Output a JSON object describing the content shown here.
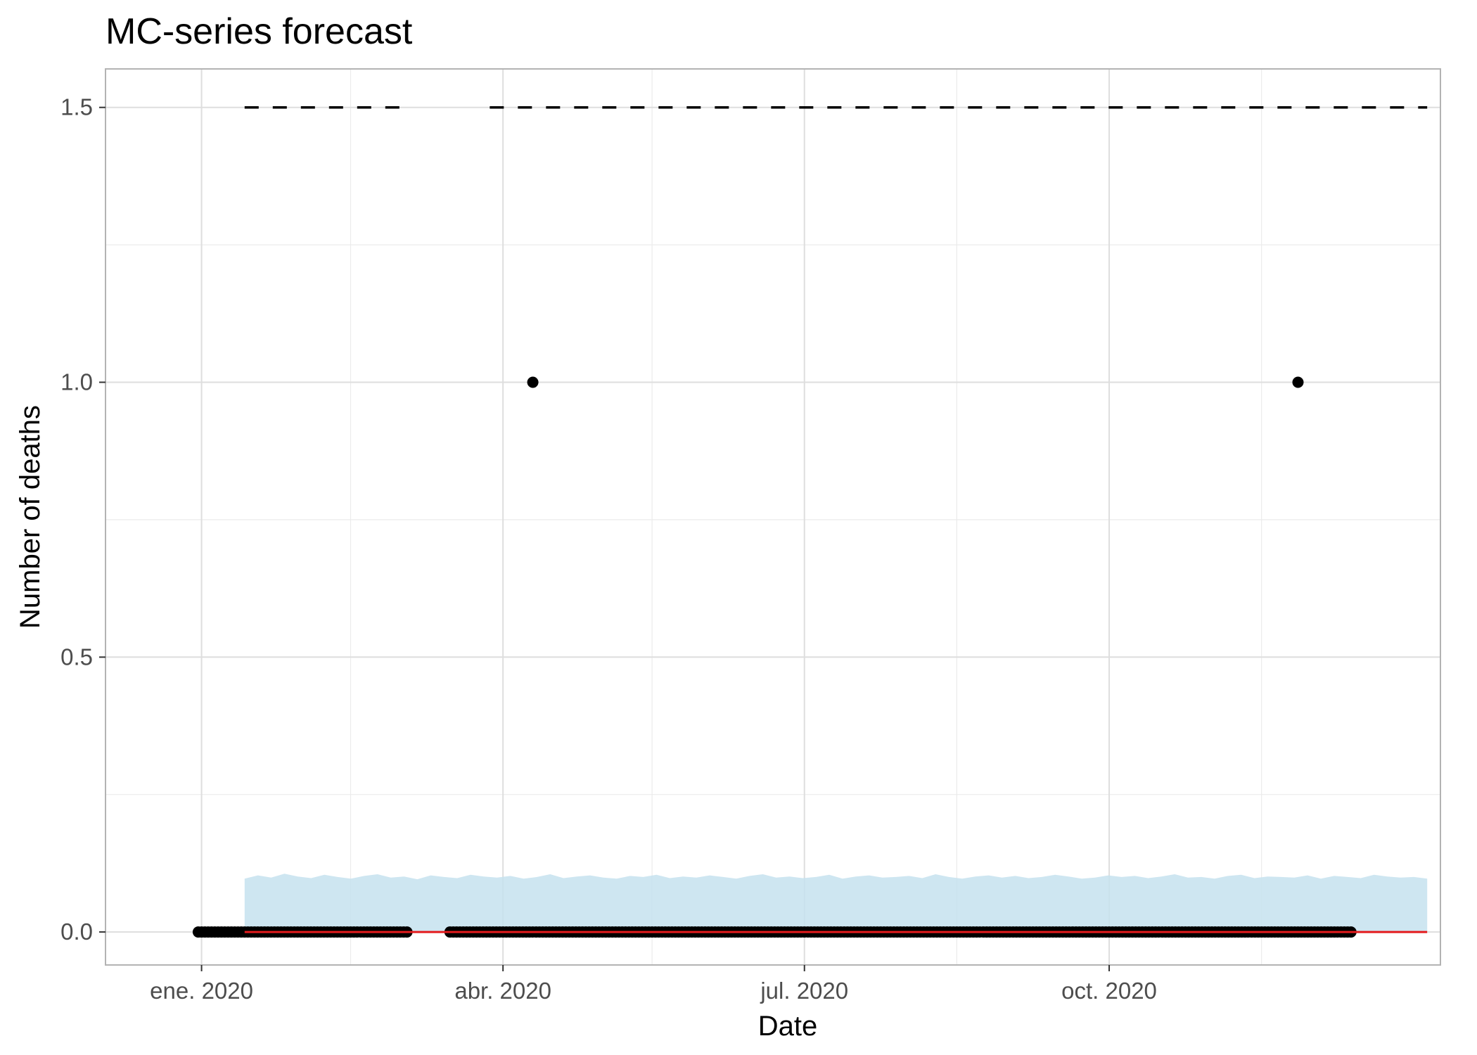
{
  "chart_data": {
    "type": "line",
    "title": "MC-series forecast",
    "xlabel": "Date",
    "ylabel": "Number of deaths",
    "xlim": [
      "2019-12-03",
      "2021-01-09"
    ],
    "ylim": [
      -0.06,
      1.57
    ],
    "x_ticks": [
      {
        "date": "2020-01-01",
        "label": "ene. 2020"
      },
      {
        "date": "2020-04-01",
        "label": "abr. 2020"
      },
      {
        "date": "2020-07-01",
        "label": "jul. 2020"
      },
      {
        "date": "2020-10-01",
        "label": "oct. 2020"
      }
    ],
    "x_minor_ticks": [
      "2020-02-15",
      "2020-05-16",
      "2020-08-16",
      "2020-11-16"
    ],
    "y_ticks": [
      0,
      0.5,
      1,
      1.5
    ],
    "y_tick_labels": [
      "0.0",
      "0.5",
      "1.0",
      "1.5"
    ],
    "y_minor_ticks": [
      0.25,
      0.75,
      1.25
    ],
    "grid": true,
    "legend": "none",
    "series": [
      {
        "type": "scatter",
        "color": "#000000",
        "segments": [
          {
            "from": "2019-12-31",
            "to": "2020-03-03",
            "y": 0
          },
          {
            "from": "2020-03-16",
            "to": "2020-12-13",
            "y": 0
          }
        ],
        "points": [
          {
            "x": "2020-04-10",
            "y": 1
          },
          {
            "x": "2020-11-27",
            "y": 1
          }
        ]
      },
      {
        "type": "line",
        "color": "#e41a1c",
        "from": "2020-01-14",
        "to": "2021-01-05",
        "y": 0
      },
      {
        "type": "area",
        "color": "#c6e2ef",
        "from": "2020-01-14",
        "to": "2021-01-05",
        "lower": 0,
        "upper": [
          0.097,
          0.103,
          0.099,
          0.106,
          0.101,
          0.098,
          0.104,
          0.1,
          0.097,
          0.102,
          0.105,
          0.099,
          0.101,
          0.096,
          0.103,
          0.1,
          0.098,
          0.104,
          0.101,
          0.099,
          0.102,
          0.097,
          0.1,
          0.105,
          0.098,
          0.101,
          0.103,
          0.099,
          0.097,
          0.102,
          0.1,
          0.104,
          0.098,
          0.101,
          0.099,
          0.103,
          0.1,
          0.097,
          0.102,
          0.105,
          0.099,
          0.101,
          0.098,
          0.1,
          0.104,
          0.097,
          0.101,
          0.103,
          0.099,
          0.1,
          0.102,
          0.098,
          0.105,
          0.1,
          0.097,
          0.101,
          0.103,
          0.099,
          0.102,
          0.098,
          0.1,
          0.104,
          0.101,
          0.097,
          0.099,
          0.103,
          0.1,
          0.102,
          0.098,
          0.101,
          0.105,
          0.099,
          0.1,
          0.097,
          0.102,
          0.104,
          0.098,
          0.101,
          0.1,
          0.099,
          0.103,
          0.097,
          0.102,
          0.1,
          0.098,
          0.104,
          0.101,
          0.099,
          0.1,
          0.097
        ]
      },
      {
        "type": "line",
        "style": "dashed",
        "color": "#000000",
        "segments": [
          {
            "from": "2020-01-14",
            "to": "2020-03-03",
            "y": 1.5
          },
          {
            "from": "2020-03-28",
            "to": "2021-01-05",
            "y": 1.5
          }
        ]
      }
    ]
  }
}
